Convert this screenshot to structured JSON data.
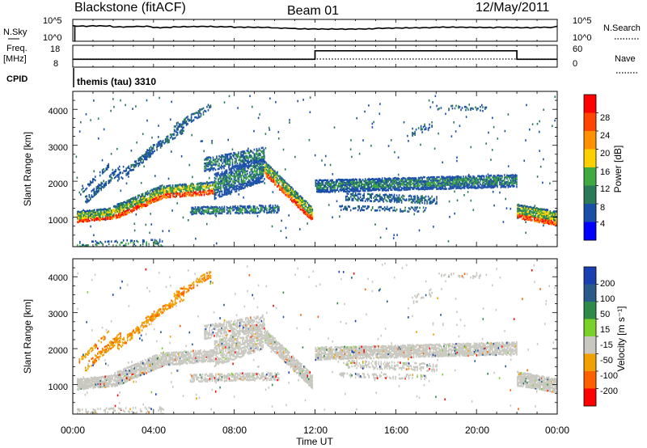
{
  "header": {
    "station": "Blackstone (fitACF)",
    "beam": "Beam 01",
    "date": "12/May/2011"
  },
  "chart_data": [
    {
      "type": "line",
      "name": "noise-panel",
      "left_label": "N.Sky",
      "right_label": "N.Search",
      "left_ticks": [
        "10^5",
        "10^0"
      ],
      "right_ticks": [
        "10^5",
        "10^0"
      ],
      "series": [
        {
          "name": "N.Sky",
          "x": [
            "00:00",
            "01:00",
            "02:00",
            "03:00",
            "04:00",
            "05:00",
            "06:00",
            "07:00",
            "08:00",
            "09:00",
            "10:00",
            "11:00",
            "12:00",
            "13:00",
            "14:00",
            "15:00",
            "16:00",
            "17:00",
            "18:00",
            "19:00",
            "20:00",
            "21:00",
            "22:00",
            "23:00",
            "24:00"
          ],
          "values": [
            3.5,
            3.6,
            3.4,
            3.5,
            3.2,
            3.3,
            3.3,
            3.2,
            3.1,
            3.1,
            3.0,
            2.9,
            2.9,
            2.9,
            2.9,
            3.0,
            3.0,
            3.0,
            3.1,
            3.1,
            3.1,
            3.2,
            3.2,
            3.3,
            3.6
          ]
        },
        {
          "name": "N.Search",
          "x": [
            "00:00",
            "24:00"
          ],
          "values": [
            1.4,
            1.4
          ]
        }
      ]
    },
    {
      "type": "line",
      "name": "freq-panel",
      "left_label": "Freq.",
      "left_unit": "[MHz]",
      "left_ticks": [
        "18",
        "8"
      ],
      "right_label": "Nave",
      "right_ticks": [
        "60",
        "0"
      ],
      "series": [
        {
          "name": "Freq.",
          "x": [
            "00:00",
            "12:00",
            "12:00",
            "22:00",
            "22:00",
            "24:00"
          ],
          "values": [
            10.4,
            10.4,
            16.2,
            16.2,
            10.4,
            10.4
          ]
        },
        {
          "name": "Nave",
          "x": [
            "00:00",
            "24:00"
          ],
          "values": [
            12,
            12
          ]
        }
      ]
    },
    {
      "type": "heatmap",
      "name": "power-panel",
      "cpid_label": "CPID",
      "cpid_text": "themis (tau) 3310",
      "ylabel": "Slant Range [km]",
      "yticks": [
        "1000",
        "2000",
        "3000",
        "4000"
      ],
      "ylim": [
        180,
        4500
      ],
      "xlim": [
        0,
        24
      ],
      "colorbar_label": "Power [dB]",
      "colorbar_ticks": [
        "4",
        "8",
        "12",
        "16",
        "20",
        "24",
        "28"
      ],
      "colorbar_range": [
        0,
        30
      ],
      "colors": [
        "#0000ff",
        "#1a4fa8",
        "#2a7a5a",
        "#3faa3f",
        "#ffd000",
        "#ff9000",
        "#ff4500",
        "#ff0000"
      ]
    },
    {
      "type": "heatmap",
      "name": "velocity-panel",
      "ylabel": "Slant Range [km]",
      "yticks": [
        "1000",
        "2000",
        "3000",
        "4000"
      ],
      "ylim": [
        180,
        4500
      ],
      "xlim": [
        0,
        24
      ],
      "xticks": [
        "00:00",
        "04:00",
        "08:00",
        "12:00",
        "16:00",
        "20:00",
        "00:00"
      ],
      "xlabel": "Time UT",
      "colorbar_label": "Velocity [m s⁻¹]",
      "colorbar_ticks": [
        "200",
        "100",
        "50",
        "15",
        "-15",
        "-50",
        "-100",
        "-200"
      ],
      "colors": [
        "#1a3fb0",
        "#2a5a8a",
        "#2f8a4a",
        "#7cd02a",
        "#c8c8c0",
        "#f0a000",
        "#ff6000",
        "#ff0000"
      ]
    }
  ]
}
